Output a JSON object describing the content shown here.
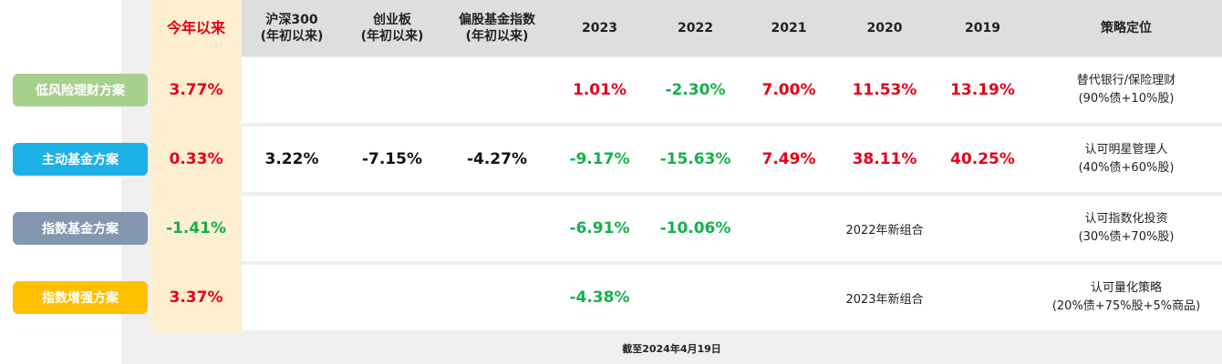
{
  "headers": [
    {
      "line1": "今年以来",
      "line2": ""
    },
    {
      "line1": "沪深300",
      "line2": "(年初以来)"
    },
    {
      "line1": "创业板",
      "line2": "(年初以来)"
    },
    {
      "line1": "偏股基金指数",
      "line2": "(年初以来)"
    },
    {
      "line1": "2023",
      "line2": ""
    },
    {
      "line1": "2022",
      "line2": ""
    },
    {
      "line1": "2021",
      "line2": ""
    },
    {
      "line1": "2020",
      "line2": ""
    },
    {
      "line1": "2019",
      "line2": ""
    },
    {
      "line1": "策略定位",
      "line2": ""
    }
  ],
  "rows": [
    {
      "name": "低风险理财方案",
      "color": "#a8d08d",
      "cells": [
        "3.77%",
        "",
        "",
        "",
        "1.01%",
        "-2.30%",
        "7.00%",
        "11.53%",
        "13.19%"
      ],
      "tones": [
        "red",
        "",
        "",
        "",
        "red",
        "green",
        "red",
        "red",
        "red"
      ],
      "position_line1": "替代银行/保险理财",
      "position_line2": "(90%债+10%股)"
    },
    {
      "name": "主动基金方案",
      "color": "#1cb0e6",
      "cells": [
        "0.33%",
        "3.22%",
        "-7.15%",
        "-4.27%",
        "-9.17%",
        "-15.63%",
        "7.49%",
        "38.11%",
        "40.25%"
      ],
      "tones": [
        "red",
        "black",
        "black",
        "black",
        "green",
        "green",
        "red",
        "red",
        "red"
      ],
      "position_line1": "认可明星管理人",
      "position_line2": "(40%债+60%股)"
    },
    {
      "name": "指数基金方案",
      "color": "#8497b0",
      "cells": [
        "-1.41%",
        "",
        "",
        "",
        "-6.91%",
        "-10.06%",
        "",
        "2022年新组合",
        ""
      ],
      "tones": [
        "green",
        "",
        "",
        "",
        "green",
        "green",
        "",
        "note",
        ""
      ],
      "position_line1": "认可指数化投资",
      "position_line2": "(30%债+70%股)"
    },
    {
      "name": "指数增强方案",
      "color": "#ffc000",
      "cells": [
        "3.37%",
        "",
        "",
        "",
        "-4.38%",
        "",
        "",
        "2023年新组合",
        ""
      ],
      "tones": [
        "red",
        "",
        "",
        "",
        "green",
        "",
        "",
        "note",
        ""
      ],
      "position_line1": "认可量化策略",
      "position_line2": "(20%债+75%股+5%商品)"
    }
  ],
  "footer": "截至2024年4月19日",
  "colors": {
    "positive": "#e3001b",
    "negative": "#14b04a",
    "ytd_highlight": "#fdefcf"
  },
  "chart_data": {
    "type": "table",
    "columns": [
      "今年以来",
      "沪深300(年初以来)",
      "创业板(年初以来)",
      "偏股基金指数(年初以来)",
      "2023",
      "2022",
      "2021",
      "2020",
      "2019",
      "策略定位"
    ],
    "series": [
      {
        "name": "低风险理财方案",
        "values": [
          3.77,
          null,
          null,
          null,
          1.01,
          -2.3,
          7.0,
          11.53,
          13.19
        ]
      },
      {
        "name": "主动基金方案",
        "values": [
          0.33,
          3.22,
          -7.15,
          -4.27,
          -9.17,
          -15.63,
          7.49,
          38.11,
          40.25
        ]
      },
      {
        "name": "指数基金方案",
        "values": [
          -1.41,
          null,
          null,
          null,
          -6.91,
          -10.06,
          null,
          null,
          null
        ]
      },
      {
        "name": "指数增强方案",
        "values": [
          3.37,
          null,
          null,
          null,
          -4.38,
          null,
          null,
          null,
          null
        ]
      }
    ]
  }
}
